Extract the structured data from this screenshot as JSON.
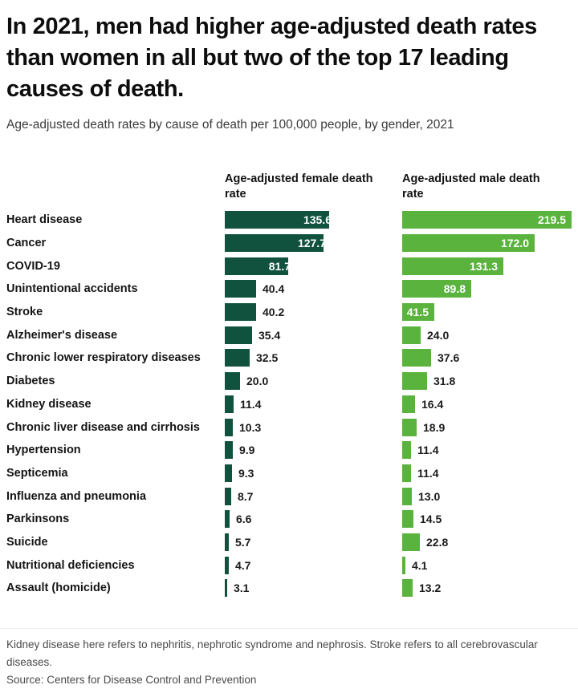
{
  "title": "In 2021, men had higher age-adjusted death rates than women in all but two of the top 17 leading causes of death.",
  "subtitle": "Age-adjusted death rates by cause of death per 100,000 people, by gender, 2021",
  "columns": {
    "female": "Age-adjusted female death rate",
    "male": "Age-adjusted male death rate"
  },
  "chart_data": {
    "type": "bar",
    "orientation": "horizontal",
    "title": "Age-adjusted death rates by cause of death per 100,000 people, by gender, 2021",
    "categories": [
      "Heart disease",
      "Cancer",
      "COVID-19",
      "Unintentional accidents",
      "Stroke",
      "Alzheimer's disease",
      "Chronic lower respiratory diseases",
      "Diabetes",
      "Kidney disease",
      "Chronic liver disease and cirrhosis",
      "Hypertension",
      "Septicemia",
      "Influenza and pneumonia",
      "Parkinsons",
      "Suicide",
      "Nutritional deficiencies",
      "Assault (homicide)"
    ],
    "series": [
      {
        "name": "Age-adjusted female death rate",
        "color": "#11523F",
        "values": [
          135.6,
          127.7,
          81.7,
          40.4,
          40.2,
          35.4,
          32.5,
          20.0,
          11.4,
          10.3,
          9.9,
          9.3,
          8.7,
          6.6,
          5.7,
          4.7,
          3.1
        ]
      },
      {
        "name": "Age-adjusted male death rate",
        "color": "#5AB33C",
        "values": [
          219.5,
          172.0,
          131.3,
          89.8,
          41.5,
          24.0,
          37.6,
          31.8,
          16.4,
          18.9,
          11.4,
          11.4,
          13.0,
          14.5,
          22.8,
          4.1,
          13.2
        ]
      }
    ],
    "xlim": [
      0,
      219.5
    ],
    "value_label_decimals": 1,
    "value_label_inside_threshold": 41,
    "grid": false,
    "legend_position": "column-headers"
  },
  "footer": {
    "note": "Kidney disease here refers to nephritis, nephrotic syndrome and nephrosis. Stroke refers to all cerebrovascular diseases.",
    "source": "Source: Centers for Disease Control and Prevention"
  }
}
